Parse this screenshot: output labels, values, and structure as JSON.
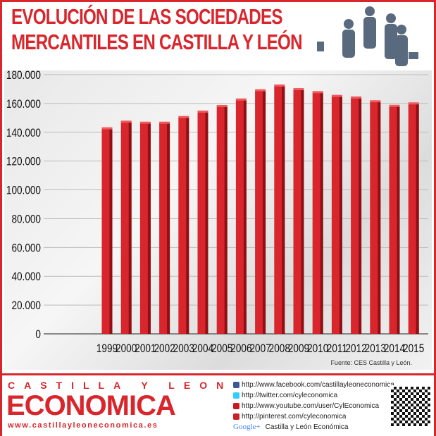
{
  "title": {
    "line1": "EVOLUCIÓN DE LAS SOCIEDADES",
    "line2": "MERCANTILES EN CASTILLA Y LEÓN"
  },
  "colors": {
    "bar": "#d9262c",
    "accent": "#d9262c"
  },
  "chart_data": {
    "type": "bar",
    "title": "EVOLUCIÓN DE LAS SOCIEDADES MERCANTILES EN CASTILLA Y LEÓN",
    "categories": [
      "1999",
      "2000",
      "2001",
      "2002",
      "2003",
      "2004",
      "2005",
      "2006",
      "2007",
      "2008",
      "2009",
      "2010",
      "2011",
      "2012",
      "2013",
      "2014",
      "2015"
    ],
    "values": [
      142500,
      147100,
      146400,
      146400,
      150300,
      154100,
      158000,
      162500,
      168900,
      172200,
      169700,
      167600,
      165000,
      163900,
      161300,
      158100,
      159800
    ],
    "ylim": [
      0,
      180000
    ],
    "yticks": [
      "0",
      "20.000",
      "40.000",
      "60.000",
      "80.000",
      "100.000",
      "120.000",
      "140.000",
      "160.000",
      "180.000"
    ],
    "grid": true,
    "xlabel": "",
    "ylabel": ""
  },
  "source": "Fuente: CES Castilla y León.",
  "footer": {
    "brand_top": "CASTILLA Y LEON",
    "brand_main": "ECONOMICA",
    "brand_url": "www.castillayleoneconomica.es",
    "links": [
      {
        "icon": "facebook-icon",
        "color": "#3b5998",
        "text": "http://www.facebook.com/castillayleoneconomica"
      },
      {
        "icon": "twitter-icon",
        "color": "#33ccff",
        "text": "http://twitter.com/cyleconomica"
      },
      {
        "icon": "youtube-icon",
        "color": "#cc181e",
        "text": "http://www.youtube.com/user/CylEconomica"
      },
      {
        "icon": "pinterest-icon",
        "color": "#cb2027",
        "text": "http://pinterest.com/cyleconomica"
      },
      {
        "icon": "google-plus-icon",
        "color": "#4285f4",
        "text": "Castilla y León Económica"
      }
    ],
    "google_label": "Google+"
  }
}
